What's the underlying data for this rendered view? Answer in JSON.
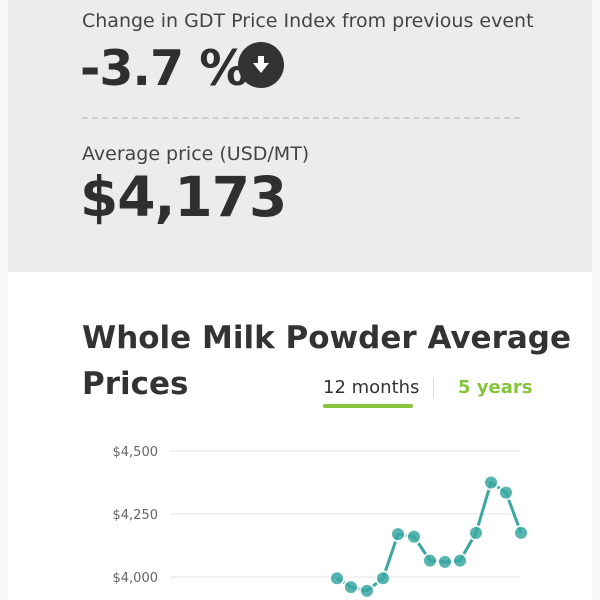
{
  "stats": {
    "change_label": "Change in GDT Price Index from previous event",
    "change_value": "-3.7 %",
    "change_direction_icon": "down-arrow-icon",
    "avg_label": "Average price (USD/MT)",
    "avg_value": "$4,173"
  },
  "chart_section": {
    "title_line1": "Whole Milk Powder Average",
    "title_line2": "Prices",
    "tabs": [
      {
        "label": "12 months",
        "active": true
      },
      {
        "label": "5 years",
        "active": false
      }
    ],
    "colors": {
      "accent_green": "#86c43d",
      "series_teal": "#3aa7a2"
    }
  },
  "chart_data": {
    "type": "line",
    "title": "Whole Milk Powder Average Prices",
    "xlabel": "",
    "ylabel": "",
    "y_ticks": [
      "$4,500",
      "$4,250",
      "$4,000"
    ],
    "ylim": [
      3950,
      4500
    ],
    "series": [
      {
        "values": [
          3995,
          3960,
          3945,
          3995,
          4170,
          4160,
          4065,
          4060,
          4065,
          4175,
          4375,
          4335,
          4175
        ]
      }
    ],
    "grid": true
  }
}
